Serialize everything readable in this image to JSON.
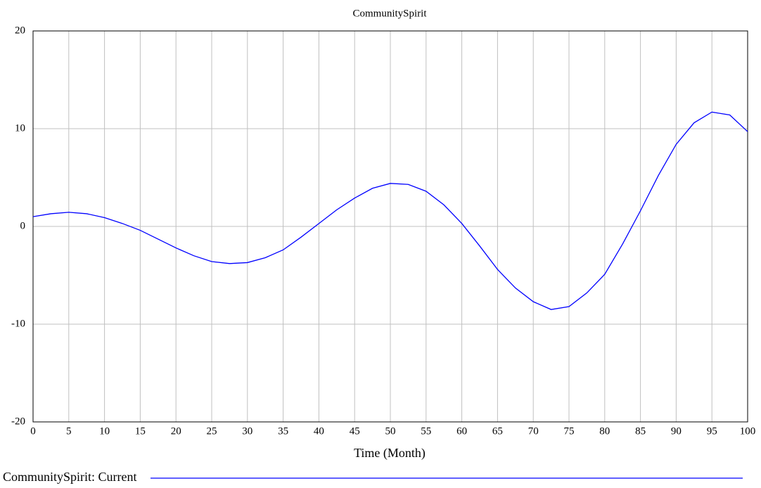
{
  "chart_data": {
    "type": "line",
    "title": "CommunitySpirit",
    "x_label": "Time (Month)",
    "x": [
      0,
      2.5,
      5,
      7.5,
      10,
      12.5,
      15,
      17.5,
      20,
      22.5,
      25,
      27.5,
      30,
      32.5,
      35,
      37.5,
      40,
      42.5,
      45,
      47.5,
      50,
      52.5,
      55,
      57.5,
      60,
      62.5,
      65,
      67.5,
      70,
      72.5,
      75,
      77.5,
      80,
      82.5,
      85,
      87.5,
      90,
      92.5,
      95,
      97.5,
      100
    ],
    "series": [
      {
        "name": "CommunitySpirit: Current",
        "color": "#0000ff",
        "values": [
          1.0,
          1.3,
          1.45,
          1.3,
          0.9,
          0.3,
          -0.4,
          -1.3,
          -2.2,
          -3.0,
          -3.6,
          -3.8,
          -3.7,
          -3.2,
          -2.4,
          -1.1,
          0.3,
          1.7,
          2.9,
          3.9,
          4.4,
          4.3,
          3.6,
          2.2,
          0.3,
          -2.0,
          -4.4,
          -6.3,
          -7.7,
          -8.5,
          -8.2,
          -6.8,
          -4.9,
          -1.8,
          1.6,
          5.2,
          8.4,
          10.6,
          11.7,
          11.4,
          9.7
        ]
      }
    ],
    "xlim": [
      0,
      100
    ],
    "xticks": [
      0,
      5,
      10,
      15,
      20,
      25,
      30,
      35,
      40,
      45,
      50,
      55,
      60,
      65,
      70,
      75,
      80,
      85,
      90,
      95,
      100
    ],
    "ylim": [
      -20,
      20
    ],
    "yticks": [
      -20,
      -10,
      0,
      10,
      20
    ],
    "grid": true
  }
}
